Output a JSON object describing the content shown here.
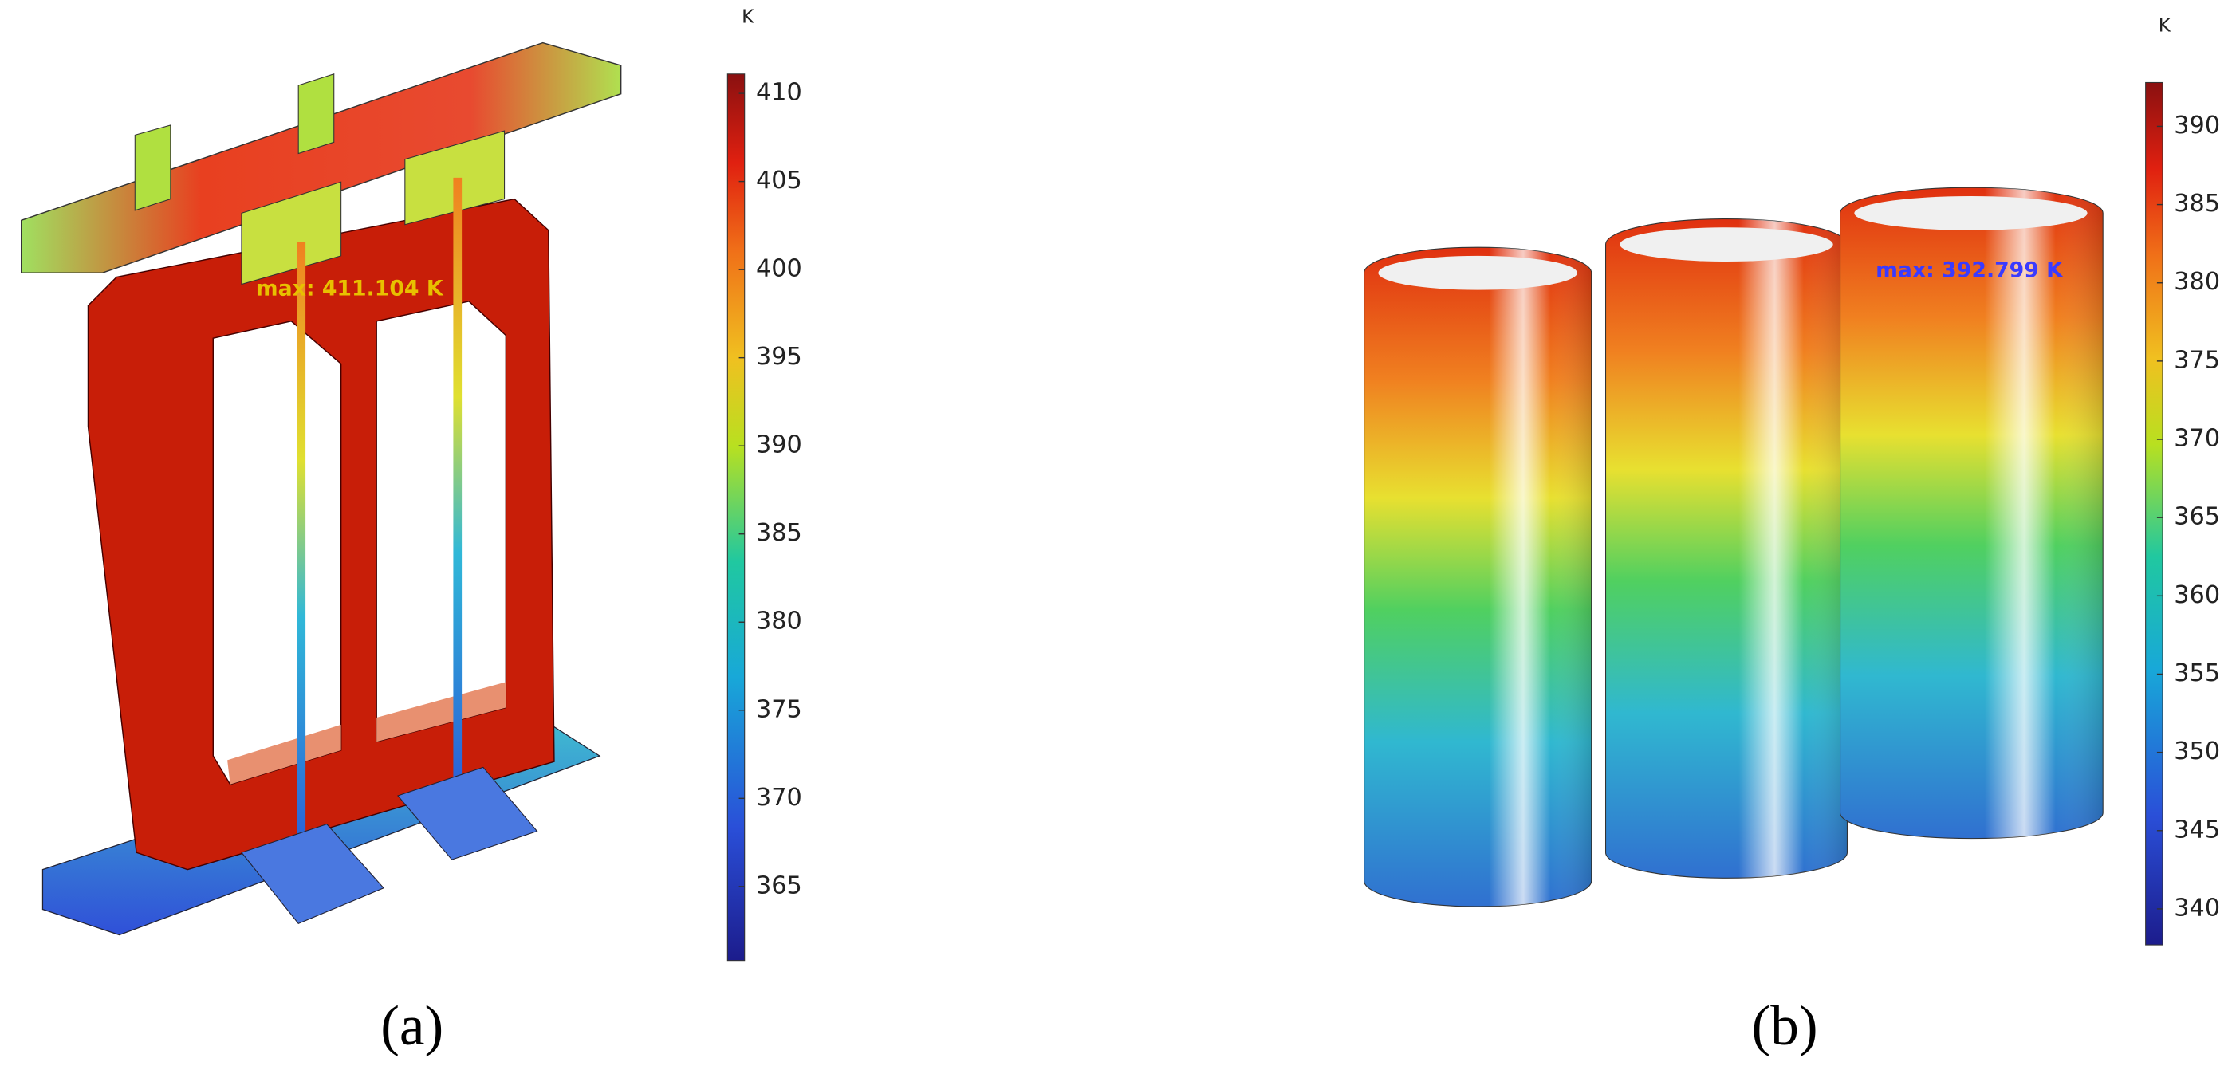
{
  "panels": [
    {
      "label": "(a)",
      "unit": "K",
      "max_label": "max: 411.104 K",
      "colorbar": {
        "lim": [
          360.8,
          411.1
        ],
        "ticks": [
          365,
          370,
          375,
          380,
          385,
          390,
          395,
          400,
          405,
          410
        ]
      }
    },
    {
      "label": "(b)",
      "unit": "K",
      "max_label": "max: 392.799 K",
      "colorbar": {
        "lim": [
          337.7,
          392.8
        ],
        "ticks": [
          340,
          345,
          350,
          355,
          360,
          365,
          370,
          375,
          380,
          385,
          390
        ]
      }
    }
  ]
}
